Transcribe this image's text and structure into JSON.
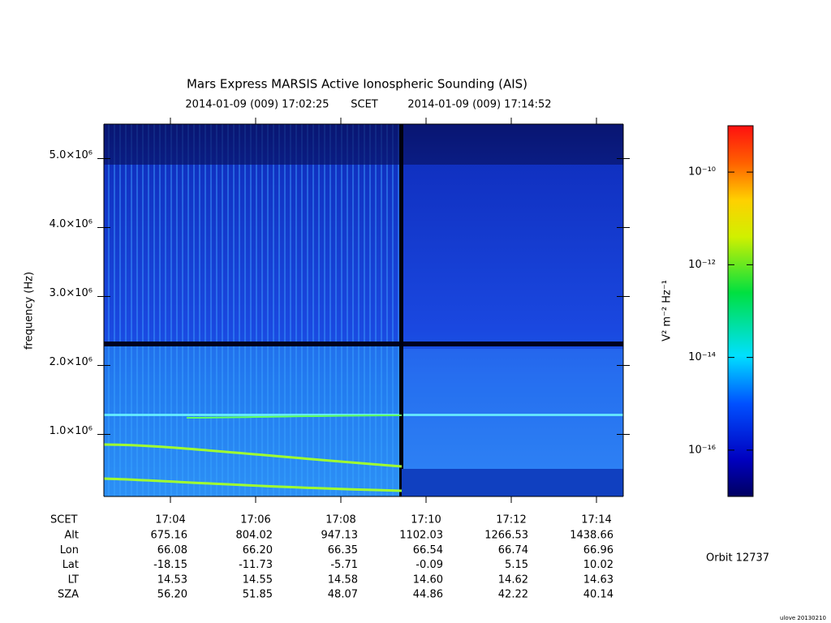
{
  "chart_data": {
    "type": "spectrogram",
    "title": "Mars Express MARSIS Active Ionospheric Sounding (AIS)",
    "subtitle": [
      "2014-01-09 (009) 17:02:25",
      "SCET",
      "2014-01-09 (009) 17:14:52"
    ],
    "y_label": "frequency (Hz)",
    "ylim": [
      100000,
      5500000
    ],
    "yticks": [
      {
        "value": 1000000,
        "label": "1.0×10⁶"
      },
      {
        "value": 2000000,
        "label": "2.0×10⁶"
      },
      {
        "value": 3000000,
        "label": "3.0×10⁶"
      },
      {
        "value": 4000000,
        "label": "4.0×10⁶"
      },
      {
        "value": 5000000,
        "label": "5.0×10⁶"
      }
    ],
    "categories": [
      "17:04",
      "17:06",
      "17:08",
      "17:10",
      "17:12",
      "17:14"
    ],
    "colorbar": {
      "label": "V² m⁻² Hz⁻¹",
      "log_scale": true,
      "lim": [
        1e-17,
        1e-09
      ],
      "ticks": [
        {
          "value": 1e-10,
          "label": "10⁻¹⁰"
        },
        {
          "value": 1e-12,
          "label": "10⁻¹²"
        },
        {
          "value": 1e-14,
          "label": "10⁻¹⁴"
        },
        {
          "value": 1e-16,
          "label": "10⁻¹⁶"
        }
      ]
    }
  },
  "ephemeris": {
    "time_label": "SCET",
    "rows": [
      {
        "label": "Alt",
        "values": [
          "675.16",
          "804.02",
          "947.13",
          "1102.03",
          "1266.53",
          "1438.66"
        ]
      },
      {
        "label": "Lon",
        "values": [
          "66.08",
          "66.20",
          "66.35",
          "66.54",
          "66.74",
          "66.96"
        ]
      },
      {
        "label": "Lat",
        "values": [
          "-18.15",
          "-11.73",
          "-5.71",
          "-0.09",
          "5.15",
          "10.02"
        ]
      },
      {
        "label": "LT",
        "values": [
          "14.53",
          "14.55",
          "14.58",
          "14.60",
          "14.62",
          "14.63"
        ]
      },
      {
        "label": "SZA",
        "values": [
          "56.20",
          "51.85",
          "48.07",
          "44.86",
          "42.22",
          "40.14"
        ]
      }
    ]
  },
  "orbit": "Orbit 12737",
  "footer": "ulove 20130210"
}
